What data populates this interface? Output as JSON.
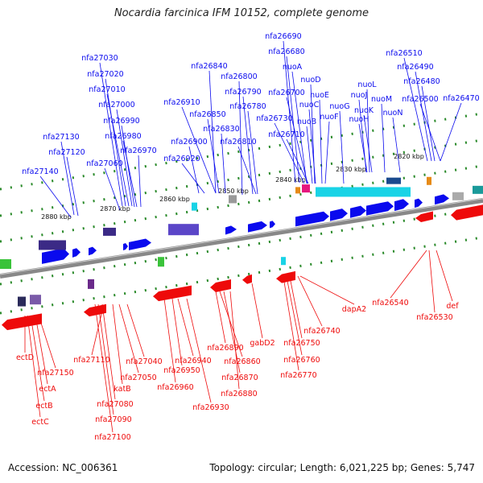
{
  "title": "Nocardia farcinica IFM 10152, complete genome",
  "footer": {
    "accession": "Accession: NC_006361",
    "stats": "Topology: circular; Length: 6,021,225 bp; Genes: 5,747"
  },
  "colors": {
    "forward": "#0a0aee",
    "reverse": "#ee0a0a",
    "backbone": "#888888",
    "tick": "#2a8a2a",
    "cyan": "#19d3e6",
    "magenta": "#e6177e"
  },
  "scale_ticks": [
    "2880 kbp",
    "2870 kbp",
    "2860 kbp",
    "2850 kbp",
    "2840 kbp",
    "2830 kbp",
    "2820 kbp"
  ],
  "forward_labels": [
    "nfa27030",
    "nfa27020",
    "nfa27010",
    "nfa27000",
    "nfa26990",
    "nfa26980",
    "nfa26970",
    "nfa27130",
    "nfa27120",
    "nfa27060",
    "nfa27140",
    "nfa26840",
    "nfa26910",
    "nfa26850",
    "nfa26830",
    "nfa26900",
    "nfa26920",
    "nfa26800",
    "nfa26790",
    "nfa26780",
    "nfa26810",
    "nfa26690",
    "nfa26680",
    "nuoA",
    "nuoD",
    "nfa26700",
    "nuoE",
    "nuoC",
    "nuoB",
    "nuoF",
    "nfa26730",
    "nfa26710",
    "nuoG",
    "nuoL",
    "nuoJ",
    "nuoK",
    "nuoM",
    "nuoH",
    "nuoN",
    "nfa26510",
    "nfa26490",
    "nfa26480",
    "nfa26500",
    "nfa26470"
  ],
  "reverse_labels": [
    "ectD",
    "nfa27150",
    "ectA",
    "ectB",
    "ectC",
    "nfa27110",
    "nfa27040",
    "nfa27050",
    "katB",
    "nfa27080",
    "nfa27090",
    "nfa27100",
    "nfa26940",
    "nfa26950",
    "nfa26960",
    "nfa26930",
    "nfa26890",
    "nfa26860",
    "nfa26870",
    "nfa26880",
    "gabD2",
    "nfa26740",
    "nfa26750",
    "nfa26760",
    "nfa26770",
    "dapA2",
    "nfa26540",
    "nfa26530",
    "def"
  ]
}
